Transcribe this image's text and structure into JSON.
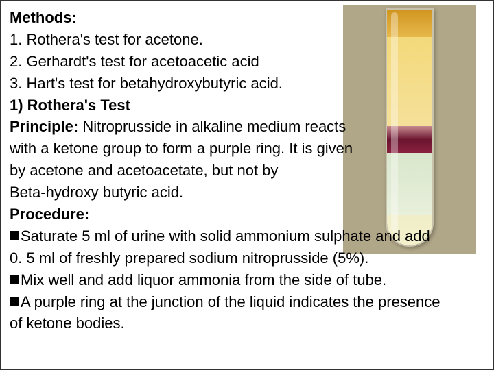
{
  "slide": {
    "heading_methods": "Methods:",
    "line1": "1. Rothera's test for acetone.",
    "line2": "2. Gerhardt's test for acetoacetic acid",
    "line3": "3.  Hart's test for betahydroxybutyric acid.",
    "heading_rothera": "1) Rothera's Test",
    "principle_label": "Principle:",
    "principle_text_1": " Nitroprusside in alkaline medium reacts",
    "principle_text_2": "with a ketone group to form a purple ring. It is given",
    "principle_text_3": " by acetone and acetoacetate, but not by",
    "principle_text_4": "Beta-hydroxy butyric acid.",
    "procedure_label": "Procedure:",
    "proc_1a": "Saturate 5 ml of urine with solid ammonium sulphate and add",
    "proc_1b": "0. 5 ml of freshly prepared sodium nitroprusside (5%).",
    "proc_2": "Mix well and add liquor ammonia from the side of tube.",
    "proc_3a": "A purple ring at the junction of the liquid indicates the presence",
    "proc_3b": "of ketone bodies."
  },
  "image": {
    "background_color": "#b0a688",
    "tube_layers": [
      {
        "name": "top-amber",
        "color_start": "#d19520",
        "color_end": "#e6b84b"
      },
      {
        "name": "yellow",
        "color_start": "#f3d97a",
        "color_end": "#f5e09a"
      },
      {
        "name": "purple-ring",
        "color_start": "#6b1530",
        "color_end": "#8b2040"
      },
      {
        "name": "pale-green",
        "color_start": "#d9e6cc",
        "color_end": "#e8f0db"
      },
      {
        "name": "bottom-cream",
        "color_start": "#f0eec8",
        "color_end": "#f3f0cb"
      }
    ]
  }
}
